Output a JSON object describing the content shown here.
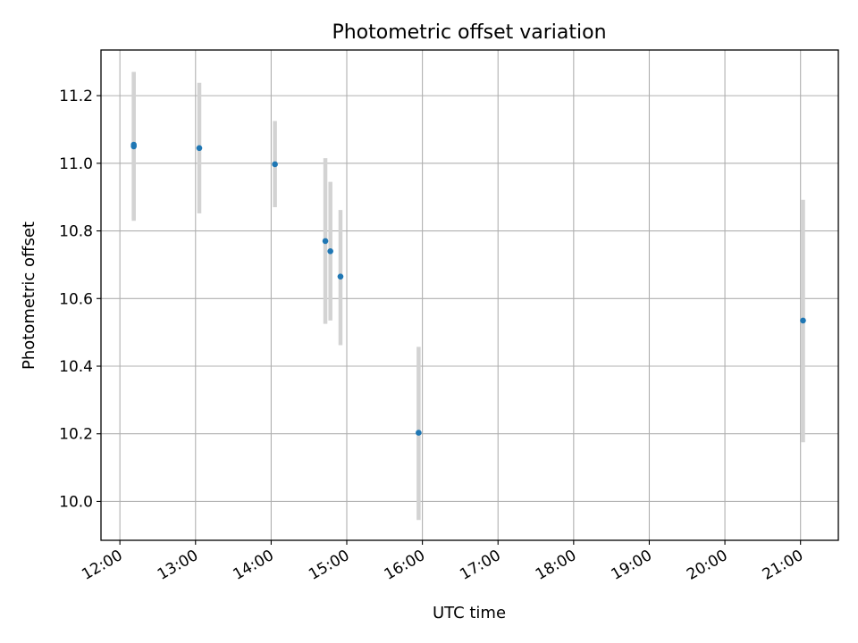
{
  "chart_data": {
    "type": "scatter",
    "title": "Photometric offset variation",
    "xlabel": "UTC time",
    "ylabel": "Photometric offset",
    "x_ticks": [
      "12:00",
      "13:00",
      "14:00",
      "15:00",
      "16:00",
      "17:00",
      "18:00",
      "19:00",
      "20:00",
      "21:00"
    ],
    "y_ticks": [
      "10.0",
      "10.2",
      "10.4",
      "10.6",
      "10.8",
      "11.0",
      "11.2"
    ],
    "xlim": [
      "11:45",
      "21:30"
    ],
    "ylim": [
      9.885,
      11.335
    ],
    "grid": true,
    "points": [
      {
        "x": "12:11",
        "y": 11.05,
        "ylow": 10.83,
        "yhigh": 11.27
      },
      {
        "x": "12:11",
        "y": 11.055,
        "ylow": 10.835,
        "yhigh": 11.27
      },
      {
        "x": "13:03",
        "y": 11.045,
        "ylow": 10.852,
        "yhigh": 11.238
      },
      {
        "x": "14:03",
        "y": 10.997,
        "ylow": 10.87,
        "yhigh": 11.125
      },
      {
        "x": "14:43",
        "y": 10.77,
        "ylow": 10.525,
        "yhigh": 11.015
      },
      {
        "x": "14:47",
        "y": 10.74,
        "ylow": 10.535,
        "yhigh": 10.945
      },
      {
        "x": "14:55",
        "y": 10.665,
        "ylow": 10.462,
        "yhigh": 10.862
      },
      {
        "x": "15:57",
        "y": 10.203,
        "ylow": 9.945,
        "yhigh": 10.457
      },
      {
        "x": "21:02",
        "y": 10.535,
        "ylow": 10.175,
        "yhigh": 10.892
      }
    ],
    "colors": {
      "marker": "#1f77b4",
      "errorbar": "#d3d3d3",
      "grid": "#b0b0b0",
      "axes": "#000000"
    }
  }
}
